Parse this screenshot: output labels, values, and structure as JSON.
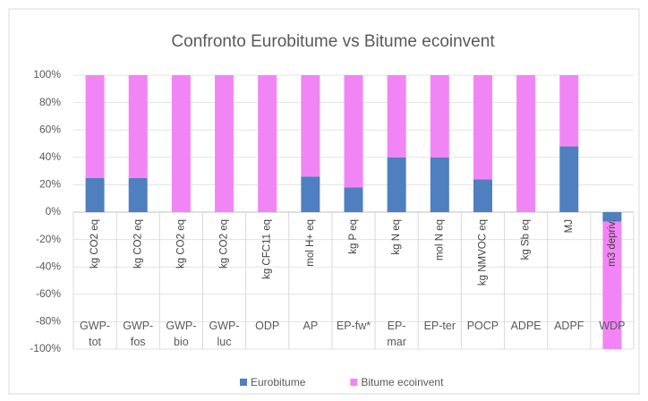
{
  "chart_data": {
    "type": "stacked_bar",
    "title": "Confronto Eurobitume vs Bitume ecoinvent",
    "categories": [
      "GWP-tot",
      "GWP-fos",
      "GWP-bio",
      "GWP-luc",
      "ODP",
      "AP",
      "EP-fw*",
      "EP-mar",
      "EP-ter",
      "POCP",
      "ADPE",
      "ADPF",
      "WDP"
    ],
    "units": [
      "kg CO2 eq",
      "kg CO2 eq",
      "kg CO2 eq",
      "kg CO2 eq",
      "kg CFC11 eq",
      "mol H+ eq",
      "kg P eq",
      "kg N eq",
      "mol N eq",
      "kg NMVOC eq",
      "kg Sb eq",
      "MJ",
      "m3 depriv."
    ],
    "series": [
      {
        "name": "Eurobitume",
        "color": "#4f7fbf",
        "values": [
          25,
          25,
          0,
          0,
          0,
          26,
          18,
          40,
          40,
          24,
          0,
          48,
          -7
        ]
      },
      {
        "name": "Bitume ecoinvent",
        "color": "#f285f5",
        "values": [
          75,
          75,
          100,
          100,
          100,
          74,
          82,
          60,
          60,
          76,
          100,
          52,
          -93
        ]
      }
    ],
    "ylim": [
      -100,
      100
    ],
    "yticks": [
      {
        "value": -100,
        "label": "-100%"
      },
      {
        "value": -80,
        "label": "-80%"
      },
      {
        "value": -60,
        "label": "-60%"
      },
      {
        "value": -40,
        "label": "-40%"
      },
      {
        "value": -20,
        "label": "-20%"
      },
      {
        "value": 0,
        "label": "0%"
      },
      {
        "value": 20,
        "label": "20%"
      },
      {
        "value": 40,
        "label": "40%"
      },
      {
        "value": 60,
        "label": "60%"
      },
      {
        "value": 80,
        "label": "80%"
      },
      {
        "value": 100,
        "label": "100%"
      }
    ],
    "grid": true,
    "legend": "bottom"
  }
}
